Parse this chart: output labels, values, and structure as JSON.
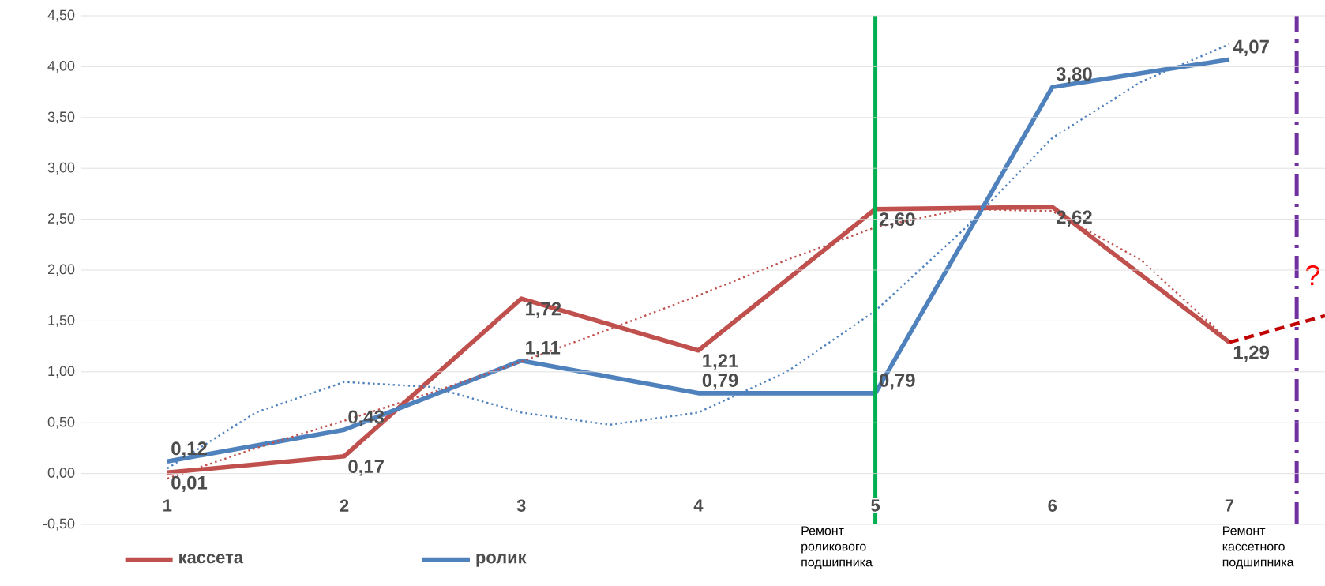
{
  "chart_data": {
    "type": "line",
    "x": [
      1,
      2,
      3,
      4,
      5,
      6,
      7
    ],
    "xlim": [
      0.51,
      7.54
    ],
    "xticks": [
      1,
      2,
      3,
      4,
      5,
      6,
      7
    ],
    "ylim": [
      -0.5,
      4.5
    ],
    "yticks": [
      {
        "value": -0.5,
        "label": "-0,50"
      },
      {
        "value": 0,
        "label": "0,00"
      },
      {
        "value": 0.5,
        "label": "0,50"
      },
      {
        "value": 1,
        "label": "1,00"
      },
      {
        "value": 1.5,
        "label": "1,50"
      },
      {
        "value": 2,
        "label": "2,00"
      },
      {
        "value": 2.5,
        "label": "2,50"
      },
      {
        "value": 3,
        "label": "3,00"
      },
      {
        "value": 3.5,
        "label": "3,50"
      },
      {
        "value": 4,
        "label": "4,00"
      },
      {
        "value": 4.5,
        "label": "4,50"
      }
    ],
    "grid": "y",
    "legend": "bottom",
    "series": [
      {
        "name": "кассета",
        "color": "#c0504d",
        "values": [
          0.01,
          0.17,
          1.72,
          1.21,
          2.6,
          2.62,
          1.29
        ],
        "value_labels": [
          "0,01",
          "0,17",
          "1,72",
          "1,21",
          "2,60",
          "2,62",
          "1,29"
        ]
      },
      {
        "name": "ролик",
        "color": "#4f81bd",
        "values": [
          0.12,
          0.43,
          1.11,
          0.79,
          0.79,
          3.8,
          4.07
        ],
        "value_labels": [
          "0,12",
          "0,43",
          "1,11",
          "0,79",
          "0,79",
          "3,80",
          "4,07"
        ]
      },
      {
        "type": "line",
        "line_style": "dotted",
        "color": "#c0504d",
        "x": [
          1,
          1.5,
          2,
          2.5,
          3,
          3.5,
          4,
          4.5,
          5,
          5.5,
          6,
          6.5,
          7
        ],
        "values": [
          -0.05,
          0.25,
          0.52,
          0.8,
          1.1,
          1.42,
          1.75,
          2.1,
          2.42,
          2.6,
          2.58,
          2.1,
          1.3
        ]
      },
      {
        "type": "line",
        "line_style": "dotted",
        "color": "#4f81bd",
        "x": [
          1,
          1.5,
          2,
          2.5,
          3,
          3.5,
          4,
          4.5,
          5,
          5.5,
          6,
          6.5,
          7
        ],
        "values": [
          0.05,
          0.6,
          0.9,
          0.85,
          0.6,
          0.48,
          0.6,
          1.0,
          1.6,
          2.4,
          3.3,
          3.85,
          4.22
        ]
      },
      {
        "type": "line",
        "line_style": "dashed",
        "color": "#c00000",
        "x": [
          7,
          7.54
        ],
        "values": [
          1.29,
          1.55
        ]
      }
    ],
    "ref_lines": [
      {
        "axis": "x",
        "value": 5,
        "label": "Ремонт роликового подшипника",
        "color": "#00b050"
      },
      {
        "axis": "x",
        "value": 7.38,
        "label": "Ремонт кассетного подшипника",
        "color": "#7030a0",
        "line_style": "dashdot"
      }
    ],
    "annotations": [
      "?"
    ]
  }
}
